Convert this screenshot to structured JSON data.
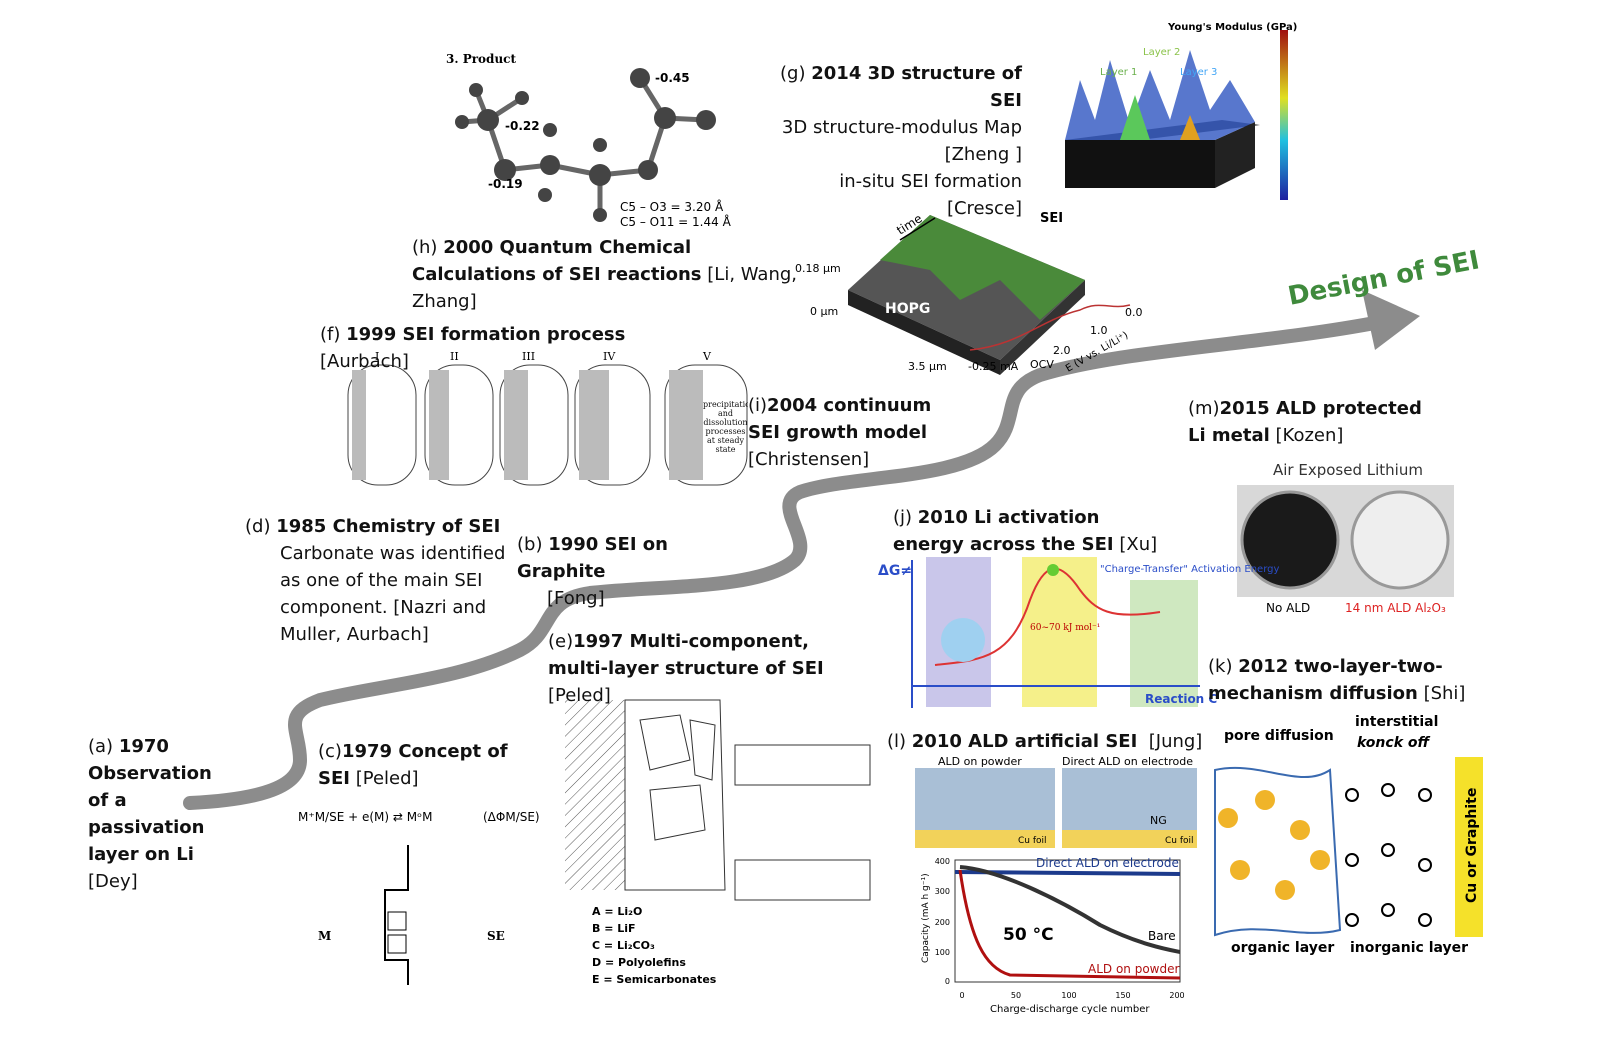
{
  "arrow_label": "Design of SEI",
  "milestones": {
    "a": {
      "tag": "(a)",
      "title": "1970 Observation of a passivation layer on Li",
      "ref": "[Dey]"
    },
    "c": {
      "tag": "(c)",
      "title": "1979 Concept of SEI",
      "ref": "[Peled]"
    },
    "d": {
      "tag": "(d)",
      "title": "1985 Chemistry of SEI",
      "detail": "Carbonate was identified as one of the main SEI component. [Nazri and Muller, Aurbach]"
    },
    "b": {
      "tag": "(b)",
      "title": "1990 SEI on Graphite",
      "ref": "[Fong]"
    },
    "e": {
      "tag": "(e)",
      "title": "1997 Multi-component, multi-layer structure of SEI",
      "ref": "[Peled]"
    },
    "f": {
      "tag": "(f)",
      "title": "1999 SEI formation process",
      "ref": "[Aurbach]"
    },
    "h": {
      "tag": "(h)",
      "title": "2000 Quantum Chemical Calculations of SEI reactions",
      "ref": "[Li, Wang, Zhang]"
    },
    "i": {
      "tag": "(i)",
      "title": "2004 continuum SEI growth model",
      "ref": "[Christensen]"
    },
    "g": {
      "tag": "(g)",
      "title": "2014 3D structure of SEI",
      "detail": [
        "3D structure-modulus Map",
        "[Zheng ]",
        "in-situ SEI formation",
        "[Cresce]"
      ]
    },
    "j": {
      "tag": "(j)",
      "title": "2010 Li activation energy across the SEI",
      "ref": "[Xu]"
    },
    "m": {
      "tag": "(m)",
      "title": "2015 ALD protected Li metal",
      "ref": "[Kozen]"
    },
    "k": {
      "tag": "(k)",
      "title": "2012 two-layer-two-mechanism diffusion",
      "ref": "[Shi]"
    },
    "l": {
      "tag": "(l)",
      "title": "2010 ALD artificial SEI",
      "ref": "[Jung]"
    }
  },
  "figures": {
    "h": {
      "heading": "3. Product",
      "charges": [
        "-0.22",
        "-0.19",
        "-0.45"
      ],
      "bonds": [
        "C5 – O3 = 3.20 Å",
        "C5 – O11 = 1.44 Å"
      ]
    },
    "g": {
      "colorbar": "Young's Modulus (GPa)",
      "layers": [
        "Layer 1",
        "Layer 2",
        "Layer 3"
      ]
    },
    "afm": {
      "time": "time",
      "sei": "SEI",
      "hopg": "HOPG",
      "z_top": "0.18 µm",
      "z_zero": "0 µm",
      "x_len": "3.5 µm",
      "current": "-0.25 mA",
      "potentials": [
        "OCV",
        "2.0",
        "1.0",
        "0.0"
      ],
      "axis": "E (V vs. Li/Li⁺)"
    },
    "f": {
      "stages": [
        "I",
        "II",
        "III",
        "IV",
        "V"
      ],
      "final": "precipitation and dissolution processes at steady state"
    },
    "m": {
      "heading": "Air Exposed Lithium",
      "left": "No ALD",
      "right": "14 nm ALD Al₂O₃"
    },
    "j": {
      "axis": "ΔG≠",
      "note": "\"Charge-Transfer\" Activation Energy",
      "energy": "60~70 kJ mol⁻¹",
      "reaction": "Reaction C"
    },
    "l": {
      "left": "ALD on powder",
      "right": "Direct ALD on electrode",
      "ng": "NG",
      "foil": "Cu foil",
      "top_curve": "Direct ALD on electrode",
      "temp": "50 °C",
      "bare": "Bare",
      "low_curve": "ALD on powder",
      "ylabel": "Capacity (mA h g⁻¹)",
      "xlabel": "Charge-discharge cycle number",
      "yticks": [
        "0",
        "100",
        "200",
        "300",
        "400"
      ],
      "xticks": [
        "0",
        "50",
        "100",
        "150",
        "200"
      ]
    },
    "k": {
      "pore": "pore diffusion",
      "interstitial": "interstitial",
      "knock": "konck off",
      "organic": "organic layer",
      "inorganic": "inorganic layer",
      "substrate": "Cu or Graphite"
    },
    "e": {
      "legend": [
        "A = Li₂O",
        "B = LiF",
        "C = Li₂CO₃",
        "D = Polyolefins",
        "E = Semicarbonates"
      ]
    },
    "c": {
      "equation": "M⁺M/SE + e(M) ⇄ MᵒM",
      "potential": "(ΔΦM/SE)",
      "left": "M",
      "right": "SE"
    }
  }
}
